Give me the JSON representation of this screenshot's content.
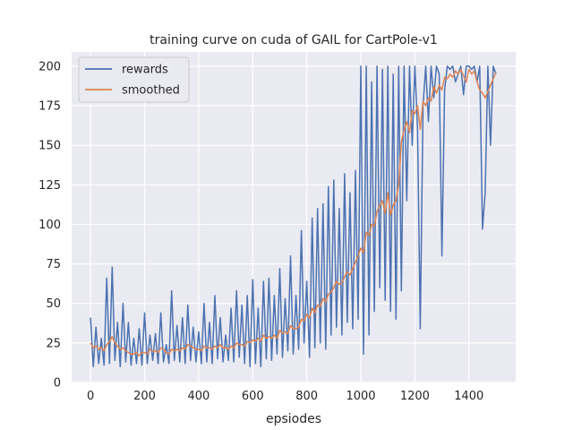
{
  "chart_data": {
    "type": "line",
    "title": "training curve on cuda of GAIL for CartPole-v1",
    "xlabel": "epsiodes",
    "ylabel": "",
    "xlim": [
      -70,
      1573
    ],
    "ylim": [
      0,
      209
    ],
    "x_ticks": [
      0,
      200,
      400,
      600,
      800,
      1000,
      1200,
      1400
    ],
    "y_ticks": [
      0,
      25,
      50,
      75,
      100,
      125,
      150,
      175,
      200
    ],
    "grid": true,
    "legend_position": "top-left",
    "series": [
      {
        "name": "rewards",
        "color": "#4c72b0",
        "line_width": 1.5,
        "x": [
          0,
          10,
          20,
          30,
          40,
          50,
          60,
          70,
          80,
          90,
          100,
          110,
          120,
          130,
          140,
          150,
          160,
          170,
          180,
          190,
          200,
          210,
          220,
          230,
          240,
          250,
          260,
          270,
          280,
          290,
          300,
          310,
          320,
          330,
          340,
          350,
          360,
          370,
          380,
          390,
          400,
          410,
          420,
          430,
          440,
          450,
          460,
          470,
          480,
          490,
          500,
          510,
          520,
          530,
          540,
          550,
          560,
          570,
          580,
          590,
          600,
          610,
          620,
          630,
          640,
          650,
          660,
          670,
          680,
          690,
          700,
          710,
          720,
          730,
          740,
          750,
          760,
          770,
          780,
          790,
          800,
          810,
          820,
          830,
          840,
          850,
          860,
          870,
          880,
          890,
          900,
          910,
          920,
          930,
          940,
          950,
          960,
          970,
          980,
          990,
          1000,
          1010,
          1020,
          1030,
          1040,
          1050,
          1060,
          1070,
          1080,
          1090,
          1100,
          1110,
          1120,
          1130,
          1140,
          1150,
          1160,
          1170,
          1180,
          1190,
          1200,
          1210,
          1220,
          1230,
          1240,
          1250,
          1260,
          1270,
          1280,
          1290,
          1300,
          1310,
          1320,
          1330,
          1340,
          1350,
          1360,
          1370,
          1380,
          1390,
          1400,
          1410,
          1420,
          1430,
          1440,
          1450,
          1460,
          1470,
          1480,
          1490,
          1500
        ],
        "values": [
          41,
          10,
          35,
          12,
          28,
          11,
          66,
          12,
          73,
          14,
          38,
          10,
          50,
          13,
          38,
          11,
          28,
          12,
          34,
          11,
          44,
          12,
          30,
          14,
          31,
          12,
          44,
          13,
          24,
          12,
          58,
          14,
          36,
          13,
          41,
          12,
          49,
          14,
          35,
          13,
          32,
          12,
          50,
          13,
          38,
          12,
          55,
          15,
          41,
          13,
          30,
          14,
          47,
          13,
          58,
          16,
          49,
          12,
          55,
          10,
          65,
          12,
          47,
          10,
          64,
          15,
          66,
          14,
          55,
          18,
          72,
          16,
          53,
          20,
          80,
          18,
          55,
          21,
          96,
          25,
          64,
          16,
          104,
          22,
          110,
          25,
          113,
          21,
          124,
          30,
          128,
          35,
          110,
          30,
          132,
          38,
          120,
          34,
          134,
          40,
          200,
          18,
          200,
          30,
          190,
          45,
          200,
          60,
          198,
          52,
          200,
          45,
          195,
          40,
          200,
          58,
          200,
          115,
          200,
          150,
          200,
          160,
          34,
          175,
          200,
          165,
          200,
          180,
          200,
          195,
          80,
          185,
          200,
          198,
          200,
          190,
          195,
          200,
          182,
          200,
          200,
          198,
          200,
          190,
          200,
          97,
          120,
          200,
          150,
          200,
          195
        ]
      },
      {
        "name": "smoothed",
        "color": "#dd8452",
        "line_width": 1.5,
        "x": [
          0,
          10,
          20,
          30,
          40,
          50,
          60,
          70,
          80,
          90,
          100,
          110,
          120,
          130,
          140,
          150,
          160,
          170,
          180,
          190,
          200,
          210,
          220,
          230,
          240,
          250,
          260,
          270,
          280,
          290,
          300,
          310,
          320,
          330,
          340,
          350,
          360,
          370,
          380,
          390,
          400,
          410,
          420,
          430,
          440,
          450,
          460,
          470,
          480,
          490,
          500,
          510,
          520,
          530,
          540,
          550,
          560,
          570,
          580,
          590,
          600,
          610,
          620,
          630,
          640,
          650,
          660,
          670,
          680,
          690,
          700,
          710,
          720,
          730,
          740,
          750,
          760,
          770,
          780,
          790,
          800,
          810,
          820,
          830,
          840,
          850,
          860,
          870,
          880,
          890,
          900,
          910,
          920,
          930,
          940,
          950,
          960,
          970,
          980,
          990,
          1000,
          1010,
          1020,
          1030,
          1040,
          1050,
          1060,
          1070,
          1080,
          1090,
          1100,
          1110,
          1120,
          1130,
          1140,
          1150,
          1160,
          1170,
          1180,
          1190,
          1200,
          1210,
          1220,
          1230,
          1240,
          1250,
          1260,
          1270,
          1280,
          1290,
          1300,
          1310,
          1320,
          1330,
          1340,
          1350,
          1360,
          1370,
          1380,
          1390,
          1400,
          1410,
          1420,
          1430,
          1440,
          1450,
          1460,
          1470,
          1480,
          1490,
          1500
        ],
        "values": [
          25,
          22,
          23,
          21,
          22,
          20,
          24,
          26,
          29,
          25,
          23,
          21,
          22,
          20,
          19,
          18,
          18,
          19,
          17,
          19,
          19,
          18,
          21,
          20,
          20,
          19,
          22,
          21,
          19,
          18,
          21,
          20,
          21,
          20,
          22,
          21,
          24,
          23,
          22,
          21,
          21,
          20,
          23,
          22,
          22,
          21,
          23,
          22,
          24,
          22,
          22,
          21,
          23,
          22,
          25,
          24,
          24,
          23,
          26,
          25,
          27,
          26,
          28,
          26,
          30,
          28,
          29,
          28,
          30,
          28,
          33,
          31,
          32,
          31,
          36,
          34,
          34,
          35,
          40,
          39,
          43,
          41,
          47,
          44,
          49,
          48,
          53,
          51,
          56,
          57,
          60,
          64,
          62,
          63,
          67,
          70,
          68,
          72,
          76,
          80,
          85,
          82,
          95,
          93,
          100,
          99,
          108,
          112,
          115,
          107,
          120,
          106,
          112,
          115,
          125,
          152,
          160,
          165,
          158,
          172,
          170,
          175,
          160,
          178,
          175,
          180,
          178,
          187,
          183,
          188,
          185,
          193,
          192,
          195,
          193,
          197,
          195,
          198,
          194,
          190,
          198,
          195,
          197,
          190,
          185,
          183,
          180,
          184,
          188,
          192,
          196
        ]
      }
    ]
  }
}
